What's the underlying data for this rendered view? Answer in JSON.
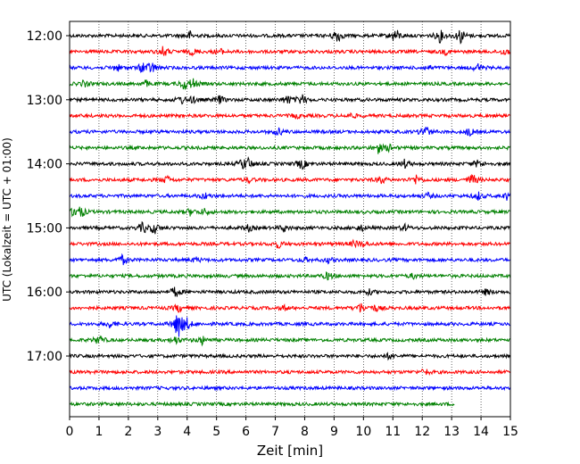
{
  "chart_data": {
    "type": "line",
    "title": "",
    "xlabel": "Zeit  [min]",
    "ylabel": "UTC (Lokalzeit = UTC + 01:00)",
    "xlim": [
      0,
      15
    ],
    "x_ticks": [
      "0",
      "1",
      "2",
      "3",
      "4",
      "5",
      "6",
      "7",
      "8",
      "9",
      "10",
      "11",
      "12",
      "13",
      "14",
      "15"
    ],
    "y_ticks": [
      "12:00",
      "13:00",
      "14:00",
      "15:00",
      "16:00",
      "17:00"
    ],
    "y_tick_rows": [
      0,
      4,
      8,
      12,
      16,
      20
    ],
    "row_start": "12:00",
    "row_interval_minutes": 15,
    "grid": "vertical dotted",
    "colors": [
      "#000000",
      "#ff0000",
      "#0000ff",
      "#008000"
    ],
    "rows": [
      {
        "start": "12:00",
        "color": "#000000",
        "end_minute": 15,
        "events": [
          [
            4.1,
            0.5
          ],
          [
            9.1,
            1.0
          ],
          [
            11.1,
            0.9
          ],
          [
            12.6,
            0.8
          ],
          [
            13.3,
            1.0
          ]
        ]
      },
      {
        "start": "12:15",
        "color": "#ff0000",
        "end_minute": 15,
        "events": [
          [
            3.2,
            0.7
          ],
          [
            4.2,
            0.4
          ],
          [
            5.1,
            0.4
          ],
          [
            12.8,
            0.3
          ],
          [
            14.8,
            0.4
          ]
        ]
      },
      {
        "start": "12:30",
        "color": "#0000ff",
        "end_minute": 15,
        "events": [
          [
            1.6,
            0.5
          ],
          [
            2.5,
            0.7
          ],
          [
            2.8,
            0.7
          ],
          [
            12.2,
            0.3
          ],
          [
            13.9,
            0.5
          ]
        ]
      },
      {
        "start": "12:45",
        "color": "#008000",
        "end_minute": 15,
        "events": [
          [
            0.5,
            0.4
          ],
          [
            2.6,
            0.4
          ],
          [
            3.9,
            0.7
          ],
          [
            4.2,
            0.6
          ]
        ]
      },
      {
        "start": "13:00",
        "color": "#000000",
        "end_minute": 15,
        "events": [
          [
            3.8,
            0.5
          ],
          [
            4.2,
            0.4
          ],
          [
            5.1,
            0.5
          ],
          [
            7.4,
            0.6
          ],
          [
            7.9,
            0.7
          ]
        ]
      },
      {
        "start": "13:15",
        "color": "#ff0000",
        "end_minute": 15,
        "events": [
          [
            7.7,
            0.3
          ],
          [
            9.6,
            0.3
          ]
        ]
      },
      {
        "start": "13:30",
        "color": "#0000ff",
        "end_minute": 15,
        "events": [
          [
            7.1,
            0.5
          ],
          [
            12.1,
            0.9
          ],
          [
            13.6,
            0.5
          ]
        ]
      },
      {
        "start": "13:45",
        "color": "#008000",
        "end_minute": 15,
        "events": [
          [
            10.5,
            0.6
          ],
          [
            10.9,
            0.4
          ]
        ]
      },
      {
        "start": "14:00",
        "color": "#000000",
        "end_minute": 15,
        "events": [
          [
            5.9,
            0.6
          ],
          [
            6.1,
            0.6
          ],
          [
            7.9,
            0.7
          ],
          [
            11.4,
            0.5
          ],
          [
            13.9,
            0.5
          ]
        ]
      },
      {
        "start": "14:15",
        "color": "#ff0000",
        "end_minute": 15,
        "events": [
          [
            3.3,
            0.5
          ],
          [
            6.1,
            0.3
          ],
          [
            10.6,
            0.5
          ],
          [
            11.8,
            0.6
          ],
          [
            13.7,
            0.8
          ]
        ]
      },
      {
        "start": "14:30",
        "color": "#0000ff",
        "end_minute": 15,
        "events": [
          [
            4.6,
            0.4
          ],
          [
            12.2,
            0.3
          ],
          [
            13.9,
            0.5
          ],
          [
            14.9,
            0.6
          ]
        ]
      },
      {
        "start": "14:45",
        "color": "#008000",
        "end_minute": 15,
        "events": [
          [
            0.2,
            0.8
          ],
          [
            0.4,
            0.5
          ],
          [
            4.1,
            0.4
          ],
          [
            4.6,
            0.4
          ]
        ]
      },
      {
        "start": "15:00",
        "color": "#000000",
        "end_minute": 15,
        "events": [
          [
            2.5,
            0.7
          ],
          [
            2.9,
            0.7
          ],
          [
            6.1,
            0.4
          ],
          [
            7.3,
            0.4
          ],
          [
            9.9,
            0.4
          ],
          [
            11.4,
            0.4
          ]
        ]
      },
      {
        "start": "15:15",
        "color": "#ff0000",
        "end_minute": 15,
        "events": [
          [
            7.1,
            0.5
          ],
          [
            9.7,
            0.4
          ],
          [
            10.0,
            0.3
          ]
        ]
      },
      {
        "start": "15:30",
        "color": "#0000ff",
        "end_minute": 15,
        "events": [
          [
            1.8,
            0.6
          ],
          [
            4.3,
            0.3
          ],
          [
            8.0,
            0.3
          ],
          [
            8.8,
            0.3
          ]
        ]
      },
      {
        "start": "15:45",
        "color": "#008000",
        "end_minute": 15,
        "events": [
          [
            8.8,
            0.5
          ],
          [
            11.7,
            0.3
          ]
        ]
      },
      {
        "start": "16:00",
        "color": "#000000",
        "end_minute": 15,
        "events": [
          [
            3.6,
            0.7
          ],
          [
            10.2,
            0.3
          ],
          [
            14.2,
            0.4
          ]
        ]
      },
      {
        "start": "16:15",
        "color": "#ff0000",
        "end_minute": 15,
        "events": [
          [
            3.7,
            0.5
          ],
          [
            7.3,
            0.3
          ],
          [
            9.9,
            0.6
          ],
          [
            10.4,
            0.4
          ]
        ]
      },
      {
        "start": "16:30",
        "color": "#0000ff",
        "end_minute": 15,
        "events": [
          [
            1.4,
            0.5
          ],
          [
            3.7,
            2.0
          ],
          [
            4.0,
            0.6
          ]
        ]
      },
      {
        "start": "16:45",
        "color": "#008000",
        "end_minute": 15,
        "events": [
          [
            1.0,
            0.6
          ],
          [
            3.6,
            0.5
          ],
          [
            4.5,
            0.5
          ]
        ]
      },
      {
        "start": "17:00",
        "color": "#000000",
        "end_minute": 15,
        "events": [
          [
            10.9,
            0.4
          ]
        ]
      },
      {
        "start": "17:15",
        "color": "#ff0000",
        "end_minute": 15,
        "events": [
          [
            12.1,
            0.4
          ]
        ]
      },
      {
        "start": "17:30",
        "color": "#0000ff",
        "end_minute": 15,
        "events": []
      },
      {
        "start": "17:45",
        "color": "#008000",
        "end_minute": 13.1,
        "events": []
      }
    ]
  }
}
